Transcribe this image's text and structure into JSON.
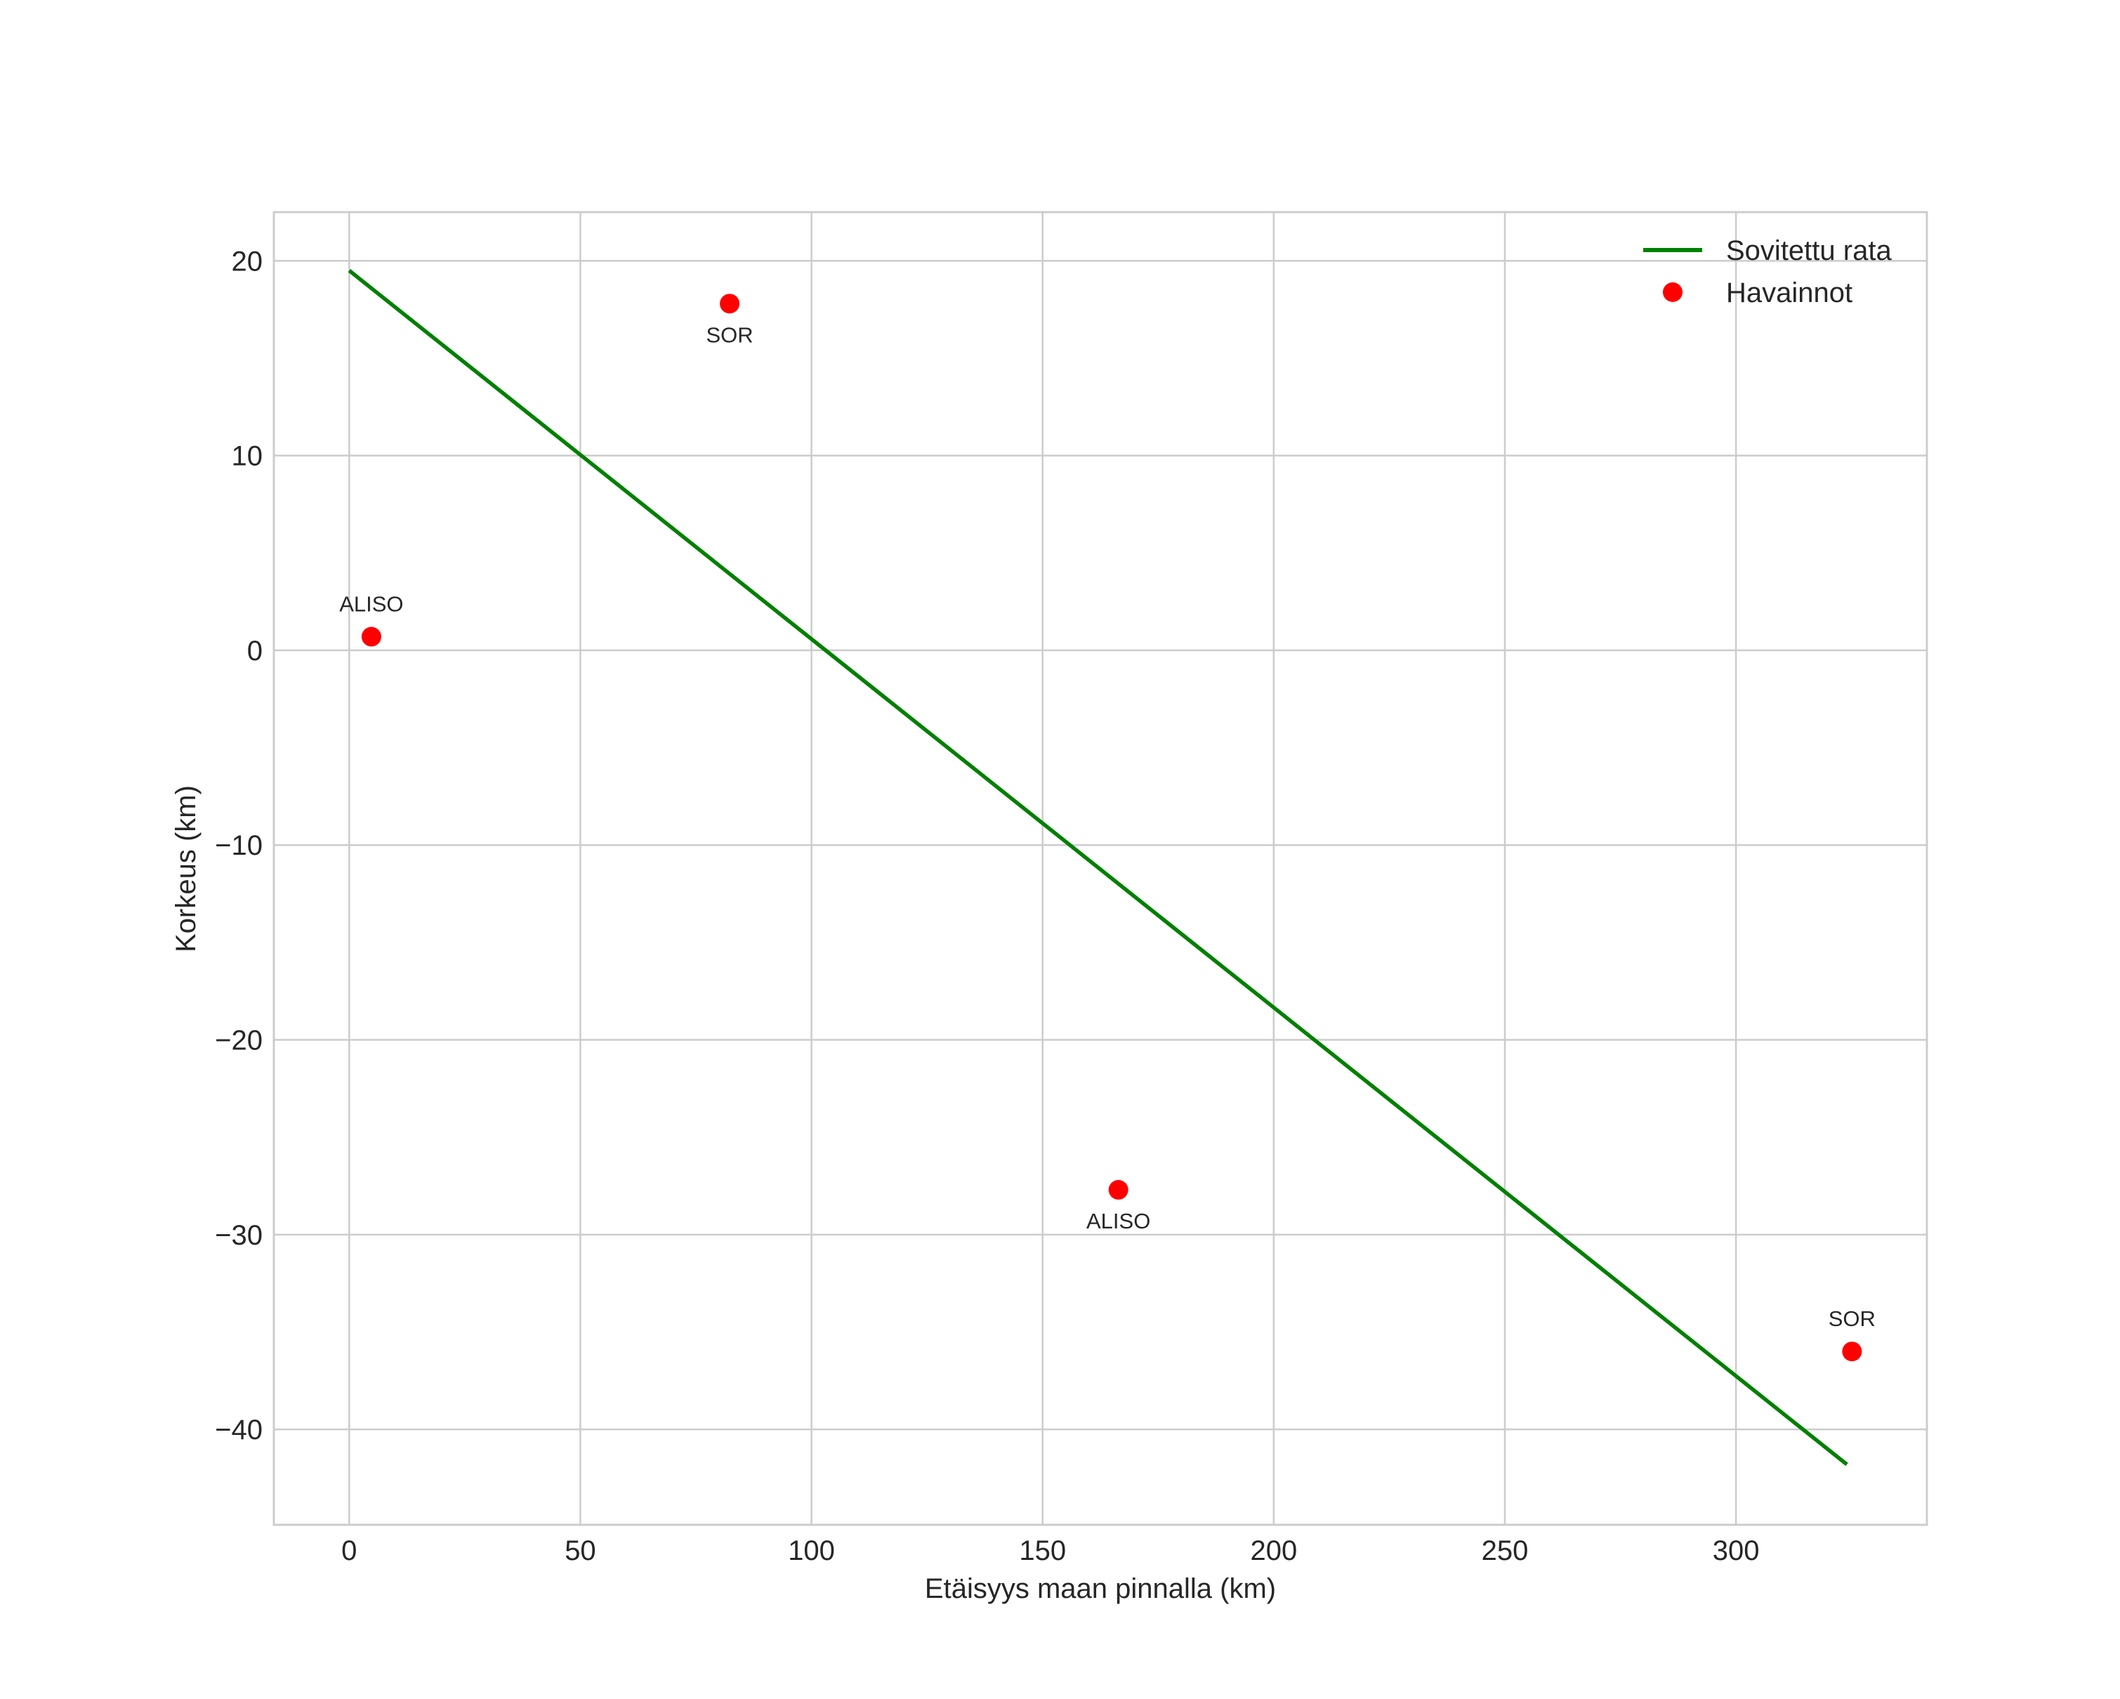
{
  "chart_data": {
    "type": "line",
    "title": "",
    "xlabel": "Etäisyys maan pinnalla (km)",
    "ylabel": "Korkeus (km)",
    "xlim": [
      -16.3,
      341.3
    ],
    "ylim": [
      -44.9,
      22.5
    ],
    "x_ticks": [
      0,
      50,
      100,
      150,
      200,
      250,
      300
    ],
    "y_ticks": [
      20,
      10,
      0,
      -10,
      -20,
      -30,
      -40
    ],
    "x_tick_labels": [
      "0",
      "50",
      "100",
      "150",
      "200",
      "250",
      "300"
    ],
    "y_tick_labels": [
      "20",
      "10",
      "0",
      "−10",
      "−20",
      "−30",
      "−40"
    ],
    "grid": true,
    "legend_position": "top-right",
    "series": [
      {
        "name": "Sovitettu rata",
        "kind": "line",
        "color": "#008000",
        "x": [
          0,
          324
        ],
        "y": [
          19.5,
          -41.8
        ]
      },
      {
        "name": "Havainnot",
        "kind": "scatter",
        "color": "#ff0000",
        "points": [
          {
            "x": 4.8,
            "y": 0.7,
            "label": "ALISO",
            "label_position": "above"
          },
          {
            "x": 82.3,
            "y": 17.8,
            "label": "SOR",
            "label_position": "below"
          },
          {
            "x": 166.4,
            "y": -27.7,
            "label": "ALISO",
            "label_position": "below"
          },
          {
            "x": 325.1,
            "y": -36.0,
            "label": "SOR",
            "label_position": "above"
          }
        ]
      }
    ]
  }
}
